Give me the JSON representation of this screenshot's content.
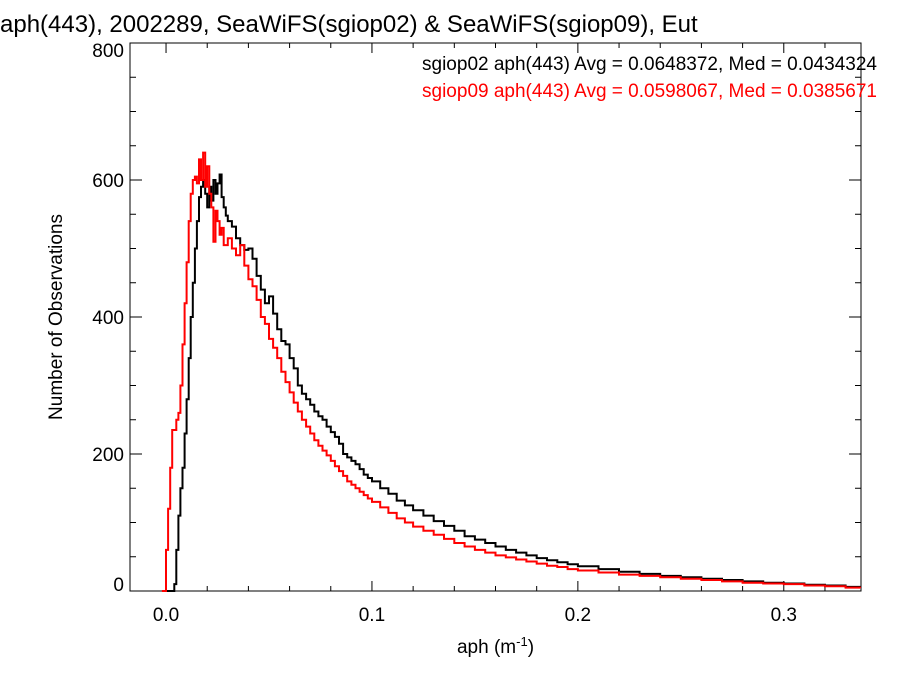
{
  "chart_data": {
    "type": "line",
    "title": "aph(443), 2002289, SeaWiFS(sgiop02) & SeaWiFS(sgiop09), Eut",
    "xlabel": "aph (m",
    "xlabel_sup": "-1",
    "xlabel_close": ")",
    "ylabel": "Number of Observations",
    "xlim": [
      -0.0175,
      0.3375
    ],
    "ylim": [
      0,
      800
    ],
    "x_ticks": [
      0.0,
      0.1,
      0.2,
      0.3
    ],
    "x_tick_labels": [
      "0.0",
      "0.1",
      "0.2",
      "0.3"
    ],
    "y_ticks": [
      0,
      200,
      400,
      600,
      800
    ],
    "y_tick_labels": [
      "0",
      "200",
      "400",
      "600",
      "800"
    ],
    "grid": false,
    "legend_position": "top-right",
    "series": [
      {
        "name": "sgiop02 aph(443) Avg = 0.0648372, Med = 0.0434324",
        "color": "#000000",
        "points": [
          [
            0.0,
            0
          ],
          [
            0.002,
            0
          ],
          [
            0.004,
            10
          ],
          [
            0.005,
            60
          ],
          [
            0.006,
            110
          ],
          [
            0.007,
            150
          ],
          [
            0.008,
            180
          ],
          [
            0.009,
            230
          ],
          [
            0.01,
            280
          ],
          [
            0.011,
            340
          ],
          [
            0.012,
            400
          ],
          [
            0.013,
            450
          ],
          [
            0.014,
            500
          ],
          [
            0.015,
            540
          ],
          [
            0.016,
            575
          ],
          [
            0.017,
            590
          ],
          [
            0.018,
            600
          ],
          [
            0.019,
            580
          ],
          [
            0.02,
            560
          ],
          [
            0.021,
            590
          ],
          [
            0.022,
            570
          ],
          [
            0.023,
            600
          ],
          [
            0.024,
            580
          ],
          [
            0.025,
            595
          ],
          [
            0.026,
            608
          ],
          [
            0.027,
            575
          ],
          [
            0.028,
            560
          ],
          [
            0.029,
            548
          ],
          [
            0.03,
            540
          ],
          [
            0.032,
            532
          ],
          [
            0.034,
            515
          ],
          [
            0.036,
            505
          ],
          [
            0.038,
            498
          ],
          [
            0.04,
            500
          ],
          [
            0.042,
            485
          ],
          [
            0.044,
            460
          ],
          [
            0.046,
            440
          ],
          [
            0.048,
            420
          ],
          [
            0.05,
            430
          ],
          [
            0.052,
            405
          ],
          [
            0.054,
            382
          ],
          [
            0.056,
            365
          ],
          [
            0.058,
            360
          ],
          [
            0.06,
            340
          ],
          [
            0.062,
            325
          ],
          [
            0.064,
            300
          ],
          [
            0.066,
            288
          ],
          [
            0.068,
            280
          ],
          [
            0.07,
            272
          ],
          [
            0.072,
            262
          ],
          [
            0.074,
            255
          ],
          [
            0.076,
            250
          ],
          [
            0.078,
            240
          ],
          [
            0.08,
            232
          ],
          [
            0.082,
            225
          ],
          [
            0.084,
            215
          ],
          [
            0.086,
            200
          ],
          [
            0.088,
            195
          ],
          [
            0.09,
            190
          ],
          [
            0.092,
            185
          ],
          [
            0.094,
            178
          ],
          [
            0.096,
            170
          ],
          [
            0.098,
            165
          ],
          [
            0.1,
            160
          ],
          [
            0.104,
            150
          ],
          [
            0.108,
            142
          ],
          [
            0.112,
            132
          ],
          [
            0.116,
            125
          ],
          [
            0.12,
            118
          ],
          [
            0.125,
            110
          ],
          [
            0.13,
            102
          ],
          [
            0.135,
            95
          ],
          [
            0.14,
            88
          ],
          [
            0.145,
            80
          ],
          [
            0.15,
            75
          ],
          [
            0.155,
            70
          ],
          [
            0.16,
            65
          ],
          [
            0.165,
            60
          ],
          [
            0.17,
            56
          ],
          [
            0.175,
            52
          ],
          [
            0.18,
            48
          ],
          [
            0.185,
            45
          ],
          [
            0.19,
            42
          ],
          [
            0.195,
            39
          ],
          [
            0.2,
            36
          ],
          [
            0.21,
            32
          ],
          [
            0.22,
            28
          ],
          [
            0.23,
            25
          ],
          [
            0.24,
            22
          ],
          [
            0.25,
            20
          ],
          [
            0.26,
            18
          ],
          [
            0.27,
            16
          ],
          [
            0.28,
            14
          ],
          [
            0.29,
            12
          ],
          [
            0.3,
            11
          ],
          [
            0.31,
            9
          ],
          [
            0.32,
            8
          ],
          [
            0.33,
            6
          ],
          [
            0.337,
            5
          ]
        ]
      },
      {
        "name": "sgiop09 aph(443) Avg = 0.0598067, Med = 0.0385671",
        "color": "#ff0000",
        "points": [
          [
            -0.002,
            0
          ],
          [
            0.0,
            60
          ],
          [
            0.001,
            120
          ],
          [
            0.002,
            180
          ],
          [
            0.003,
            235
          ],
          [
            0.004,
            235
          ],
          [
            0.005,
            250
          ],
          [
            0.006,
            260
          ],
          [
            0.007,
            300
          ],
          [
            0.008,
            360
          ],
          [
            0.009,
            420
          ],
          [
            0.01,
            480
          ],
          [
            0.011,
            540
          ],
          [
            0.012,
            580
          ],
          [
            0.013,
            600
          ],
          [
            0.014,
            605
          ],
          [
            0.015,
            595
          ],
          [
            0.016,
            630
          ],
          [
            0.017,
            600
          ],
          [
            0.018,
            640
          ],
          [
            0.019,
            590
          ],
          [
            0.02,
            620
          ],
          [
            0.021,
            580
          ],
          [
            0.022,
            560
          ],
          [
            0.023,
            510
          ],
          [
            0.024,
            555
          ],
          [
            0.025,
            540
          ],
          [
            0.026,
            520
          ],
          [
            0.027,
            530
          ],
          [
            0.028,
            505
          ],
          [
            0.03,
            515
          ],
          [
            0.032,
            500
          ],
          [
            0.034,
            490
          ],
          [
            0.036,
            505
          ],
          [
            0.038,
            475
          ],
          [
            0.04,
            455
          ],
          [
            0.042,
            445
          ],
          [
            0.044,
            425
          ],
          [
            0.046,
            400
          ],
          [
            0.048,
            390
          ],
          [
            0.05,
            368
          ],
          [
            0.052,
            355
          ],
          [
            0.054,
            340
          ],
          [
            0.056,
            320
          ],
          [
            0.058,
            305
          ],
          [
            0.06,
            290
          ],
          [
            0.062,
            275
          ],
          [
            0.064,
            262
          ],
          [
            0.066,
            250
          ],
          [
            0.068,
            240
          ],
          [
            0.07,
            230
          ],
          [
            0.072,
            220
          ],
          [
            0.074,
            212
          ],
          [
            0.076,
            205
          ],
          [
            0.078,
            198
          ],
          [
            0.08,
            190
          ],
          [
            0.082,
            182
          ],
          [
            0.084,
            175
          ],
          [
            0.086,
            168
          ],
          [
            0.088,
            160
          ],
          [
            0.09,
            155
          ],
          [
            0.092,
            150
          ],
          [
            0.094,
            145
          ],
          [
            0.096,
            140
          ],
          [
            0.098,
            135
          ],
          [
            0.1,
            130
          ],
          [
            0.104,
            122
          ],
          [
            0.108,
            114
          ],
          [
            0.112,
            106
          ],
          [
            0.116,
            100
          ],
          [
            0.12,
            94
          ],
          [
            0.125,
            88
          ],
          [
            0.13,
            82
          ],
          [
            0.135,
            76
          ],
          [
            0.14,
            70
          ],
          [
            0.145,
            65
          ],
          [
            0.15,
            60
          ],
          [
            0.155,
            56
          ],
          [
            0.16,
            52
          ],
          [
            0.165,
            49
          ],
          [
            0.17,
            46
          ],
          [
            0.175,
            43
          ],
          [
            0.18,
            40
          ],
          [
            0.185,
            37
          ],
          [
            0.19,
            35
          ],
          [
            0.195,
            32
          ],
          [
            0.2,
            30
          ],
          [
            0.21,
            27
          ],
          [
            0.22,
            24
          ],
          [
            0.23,
            22
          ],
          [
            0.24,
            20
          ],
          [
            0.25,
            18
          ],
          [
            0.26,
            16
          ],
          [
            0.27,
            14
          ],
          [
            0.28,
            12
          ],
          [
            0.29,
            11
          ],
          [
            0.3,
            10
          ],
          [
            0.31,
            8
          ],
          [
            0.32,
            7
          ],
          [
            0.33,
            5
          ],
          [
            0.337,
            4
          ]
        ]
      }
    ]
  }
}
